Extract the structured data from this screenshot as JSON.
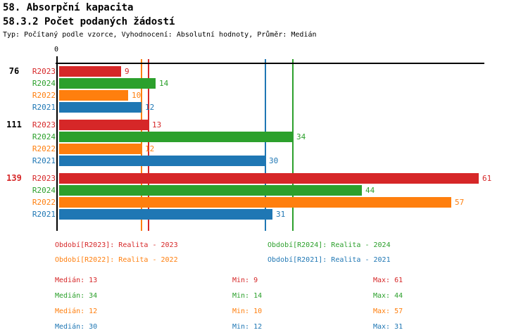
{
  "header": {
    "title": "58. Absorpční kapacita",
    "subtitle": "58.3.2 Počet podaných žádostí",
    "meta": "Typ: Počítaný podle vzorce, Vyhodnocení: Absolutní hodnoty, Průměr: Medián"
  },
  "chart_data": {
    "type": "bar",
    "orientation": "horizontal",
    "origin_tick_label": "0",
    "axis_max": 61.8,
    "grid": false,
    "series": [
      {
        "id": "R2023",
        "label": "R2023",
        "color": "#d62728",
        "median": 13,
        "min": 9,
        "max": 61
      },
      {
        "id": "R2024",
        "label": "R2024",
        "color": "#2ca02c",
        "median": 34,
        "min": 14,
        "max": 44
      },
      {
        "id": "R2022",
        "label": "R2022",
        "color": "#ff7f0e",
        "median": 12,
        "min": 10,
        "max": 57
      },
      {
        "id": "R2021",
        "label": "R2021",
        "color": "#1f77b4",
        "median": 30,
        "min": 12,
        "max": 31
      }
    ],
    "row_order": [
      "R2023",
      "R2024",
      "R2022",
      "R2021"
    ],
    "groups": [
      {
        "label": "76",
        "label_color": "#000000",
        "values": {
          "R2023": 9,
          "R2024": 14,
          "R2022": 10,
          "R2021": 12
        }
      },
      {
        "label": "111",
        "label_color": "#000000",
        "values": {
          "R2023": 13,
          "R2024": 34,
          "R2022": 12,
          "R2021": 30
        }
      },
      {
        "label": "139",
        "label_color": "#d62728",
        "values": {
          "R2023": 61,
          "R2024": 44,
          "R2022": 57,
          "R2021": 31
        }
      }
    ],
    "median_lines": [
      {
        "series": "R2022",
        "value": 12
      },
      {
        "series": "R2023",
        "value": 13
      },
      {
        "series": "R2021",
        "value": 30
      },
      {
        "series": "R2024",
        "value": 34
      }
    ]
  },
  "legend": {
    "columns": [
      [
        {
          "series": "R2023",
          "text": "Období[R2023]: Realita - 2023"
        },
        {
          "series": "R2022",
          "text": "Období[R2022]: Realita - 2022"
        }
      ],
      [
        {
          "series": "R2024",
          "text": "Období[R2024]: Realita - 2024"
        },
        {
          "series": "R2021",
          "text": "Období[R2021]: Realita - 2021"
        }
      ]
    ]
  },
  "stats": {
    "rows": [
      {
        "series": "R2023",
        "median": "Medián: 13",
        "min": "Min: 9",
        "max": "Max: 61"
      },
      {
        "series": "R2024",
        "median": "Medián: 34",
        "min": "Min: 14",
        "max": "Max: 44"
      },
      {
        "series": "R2022",
        "median": "Medián: 12",
        "min": "Min: 10",
        "max": "Max: 57"
      },
      {
        "series": "R2021",
        "median": "Medián: 30",
        "min": "Min: 12",
        "max": "Max: 31"
      }
    ]
  }
}
